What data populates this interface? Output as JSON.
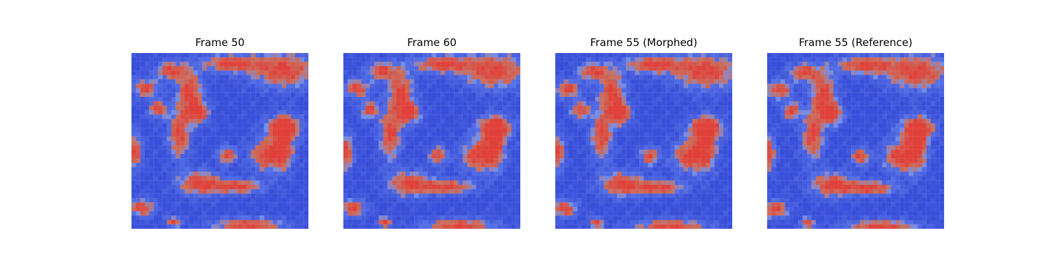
{
  "figure": {
    "panels": [
      {
        "title": "Frame 50"
      },
      {
        "title": "Frame 60"
      },
      {
        "title": "Frame 55 (Morphed)"
      },
      {
        "title": "Frame 55 (Reference)"
      }
    ],
    "colormap": {
      "low": "#3a4fd9",
      "mid": "#6f8ff0",
      "high": "#e0413a",
      "edge": "#c97060"
    },
    "grid_cells": 40
  }
}
